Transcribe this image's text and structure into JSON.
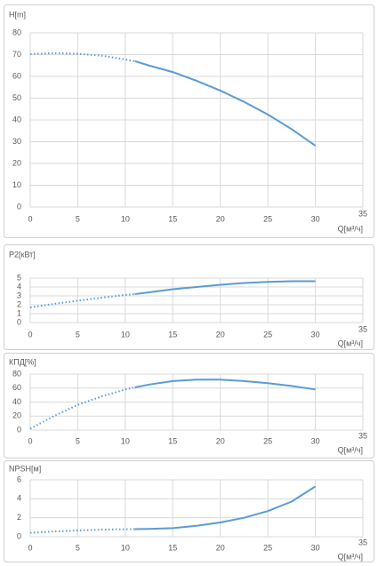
{
  "chart_data": [
    {
      "type": "line",
      "y_label": "H[m]",
      "x_label": "Q[м³/ч]",
      "x": [
        0,
        2.5,
        5,
        7.5,
        10,
        11,
        12.5,
        15,
        17.5,
        20,
        22.5,
        25,
        27.5,
        30
      ],
      "series": [
        {
          "color": "#5b9bd5",
          "dash": "dotted",
          "values": [
            70.3,
            70.7,
            70.4,
            69.5,
            67.8,
            67,
            null,
            null,
            null,
            null,
            null,
            null,
            null,
            null
          ]
        },
        {
          "color": "#5b9bd5",
          "dash": "solid",
          "values": [
            null,
            null,
            null,
            null,
            null,
            67,
            65,
            62,
            58,
            53.5,
            48.3,
            42.5,
            35.8,
            28.2
          ]
        }
      ],
      "xlim": [
        0,
        35
      ],
      "xticks": [
        0,
        5,
        10,
        15,
        20,
        25,
        30,
        35
      ],
      "ylim": [
        0,
        80
      ],
      "yticks": [
        0,
        10,
        20,
        30,
        40,
        50,
        60,
        70,
        80
      ],
      "grid": true
    },
    {
      "type": "line",
      "y_label": "P2[кВт]",
      "x_label": "Q[м³/ч]",
      "x": [
        0,
        2.5,
        5,
        7.5,
        10,
        11,
        12.5,
        15,
        17.5,
        20,
        22.5,
        25,
        27.5,
        30
      ],
      "series": [
        {
          "color": "#5b9bd5",
          "dash": "dotted",
          "values": [
            1.7,
            2.1,
            2.45,
            2.8,
            3.1,
            3.2,
            null,
            null,
            null,
            null,
            null,
            null,
            null,
            null
          ]
        },
        {
          "color": "#5b9bd5",
          "dash": "solid",
          "values": [
            null,
            null,
            null,
            null,
            null,
            3.2,
            3.4,
            3.75,
            4.0,
            4.25,
            4.45,
            4.58,
            4.65,
            4.65
          ]
        }
      ],
      "xlim": [
        0,
        35
      ],
      "xticks": [
        0,
        5,
        10,
        15,
        20,
        25,
        30,
        35
      ],
      "ylim": [
        0,
        5
      ],
      "yticks": [
        0,
        1,
        2,
        3,
        4,
        5
      ],
      "grid": true
    },
    {
      "type": "line",
      "y_label": "КПД[%]",
      "x_label": "Q[м³/ч]",
      "x": [
        0,
        2.5,
        5,
        7.5,
        10,
        11,
        12.5,
        15,
        17.5,
        20,
        22.5,
        25,
        27.5,
        30
      ],
      "series": [
        {
          "color": "#5b9bd5",
          "dash": "dotted",
          "values": [
            2,
            20,
            36,
            48,
            58,
            61,
            null,
            null,
            null,
            null,
            null,
            null,
            null,
            null
          ]
        },
        {
          "color": "#5b9bd5",
          "dash": "solid",
          "values": [
            null,
            null,
            null,
            null,
            null,
            61,
            65,
            70,
            72,
            72,
            70,
            67,
            63,
            58
          ]
        }
      ],
      "xlim": [
        0,
        35
      ],
      "xticks": [
        0,
        5,
        10,
        15,
        20,
        25,
        30,
        35
      ],
      "ylim": [
        0,
        80
      ],
      "yticks": [
        0,
        20,
        40,
        60,
        80
      ],
      "grid": true
    },
    {
      "type": "line",
      "y_label": "NPSH[м]",
      "x_label": "Q[м³/ч]",
      "x": [
        0,
        2.5,
        5,
        7.5,
        10,
        11,
        12.5,
        15,
        17.5,
        20,
        22.5,
        25,
        27.5,
        30
      ],
      "series": [
        {
          "color": "#5b9bd5",
          "dash": "dotted",
          "values": [
            0.4,
            0.55,
            0.65,
            0.75,
            0.78,
            0.8,
            null,
            null,
            null,
            null,
            null,
            null,
            null,
            null
          ]
        },
        {
          "color": "#5b9bd5",
          "dash": "solid",
          "values": [
            null,
            null,
            null,
            null,
            null,
            0.8,
            0.82,
            0.9,
            1.15,
            1.5,
            2.0,
            2.7,
            3.7,
            5.3
          ]
        }
      ],
      "xlim": [
        0,
        35
      ],
      "xticks": [
        0,
        5,
        10,
        15,
        20,
        25,
        30,
        35
      ],
      "ylim": [
        0,
        6
      ],
      "yticks": [
        0,
        2,
        4,
        6
      ],
      "grid": true
    }
  ]
}
